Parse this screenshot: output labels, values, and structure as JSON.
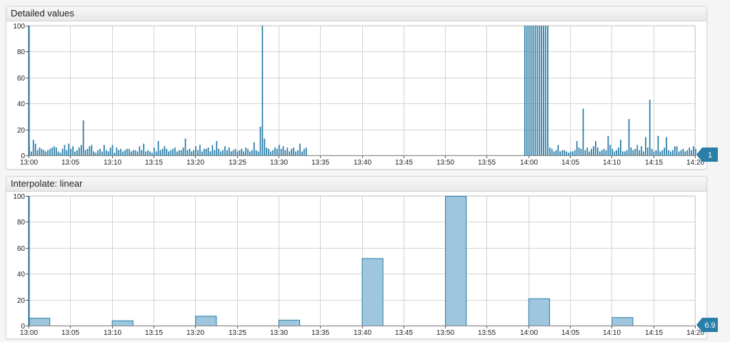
{
  "colors": {
    "line": "#2a7ea8",
    "fill": "#9ec6dc",
    "grid": "#d4d4d4",
    "axis": "#1f6c99",
    "badge": "#2a7ea8"
  },
  "chart_data": [
    {
      "type": "bar",
      "title": "Detailed values",
      "xlabel": "",
      "ylabel": "",
      "ylim": [
        0,
        100
      ],
      "grid": true,
      "x_tick_labels": [
        "13:00",
        "13:05",
        "13:10",
        "13:15",
        "13:20",
        "13:25",
        "13:30",
        "13:35",
        "13:40",
        "13:45",
        "13:50",
        "13:55",
        "14:00",
        "14:05",
        "14:10",
        "14:15",
        "14:20"
      ],
      "y_tick_labels": [
        "0",
        "20",
        "40",
        "60",
        "80",
        "100"
      ],
      "last_value": "1",
      "x_range_minutes": [
        0,
        80
      ],
      "bar_interval_minutes": 0.25,
      "series": [
        {
          "segments": [
            {
              "start_minute": 0,
              "values": [
                8,
                3,
                12,
                9,
                4,
                6,
                5,
                4,
                3,
                4,
                5,
                6,
                7,
                6,
                3,
                2,
                5,
                8,
                4,
                9,
                5,
                7,
                3,
                4,
                6,
                8,
                27,
                4,
                5,
                7,
                8,
                3,
                2,
                4,
                5,
                3,
                8,
                4,
                3,
                6,
                8,
                2,
                6,
                4,
                5,
                3,
                4,
                5,
                5,
                3,
                4,
                4,
                3,
                7,
                4,
                9,
                3,
                4,
                3,
                2,
                6,
                3,
                11,
                4,
                5,
                7,
                5,
                3,
                4,
                5,
                6,
                3,
                4,
                4,
                6,
                13,
                4,
                5,
                3,
                4,
                7,
                4,
                8,
                3,
                5,
                5,
                6,
                3,
                8,
                4,
                11,
                5,
                3,
                4,
                7,
                4,
                6,
                3,
                4,
                5,
                3,
                4,
                5,
                3,
                6,
                5,
                3,
                4,
                10,
                4,
                3,
                22,
                100,
                13,
                6,
                5,
                3,
                4,
                6,
                5,
                8,
                5,
                7,
                4,
                6,
                3,
                5,
                6,
                3,
                4,
                9,
                3,
                5,
                6
              ]
            },
            {
              "start_minute": 59.5,
              "values": [
                100,
                100,
                100,
                100,
                100,
                100,
                100,
                100,
                100,
                100,
                100,
                100,
                6,
                5,
                3,
                4,
                8,
                3,
                4,
                4,
                3,
                2,
                3,
                3,
                4,
                11,
                6,
                5,
                36,
                4,
                6,
                3,
                5,
                7,
                11,
                6,
                3,
                4,
                5,
                4,
                15,
                8,
                5,
                3,
                4,
                6,
                12,
                3,
                3,
                4,
                28,
                6,
                4,
                5,
                8,
                4,
                7,
                3,
                14,
                6,
                43,
                5,
                3,
                4,
                15,
                3,
                4,
                6,
                14,
                4,
                3,
                4,
                7,
                7,
                3,
                4,
                5,
                3,
                4,
                6,
                4,
                7,
                5,
                1
              ]
            }
          ]
        }
      ]
    },
    {
      "type": "bar",
      "title": "Interpolate: linear",
      "xlabel": "",
      "ylabel": "",
      "ylim": [
        0,
        100
      ],
      "grid": true,
      "x_tick_labels": [
        "13:00",
        "13:05",
        "13:10",
        "13:15",
        "13:20",
        "13:25",
        "13:30",
        "13:35",
        "13:40",
        "13:45",
        "13:50",
        "13:55",
        "14:00",
        "14:05",
        "14:10",
        "14:15",
        "14:20"
      ],
      "y_tick_labels": [
        "0",
        "20",
        "40",
        "60",
        "80",
        "100"
      ],
      "last_value": "6.9",
      "x_range_minutes": [
        0,
        80
      ],
      "bar_width_minutes": 2.5,
      "series": [
        {
          "bars": [
            {
              "start_minute": 0,
              "value": 6
            },
            {
              "start_minute": 10,
              "value": 4
            },
            {
              "start_minute": 20,
              "value": 7.5
            },
            {
              "start_minute": 30,
              "value": 4.5
            },
            {
              "start_minute": 40,
              "value": 52
            },
            {
              "start_minute": 50,
              "value": 100
            },
            {
              "start_minute": 60,
              "value": 21
            },
            {
              "start_minute": 70,
              "value": 6.5
            }
          ]
        }
      ]
    }
  ]
}
